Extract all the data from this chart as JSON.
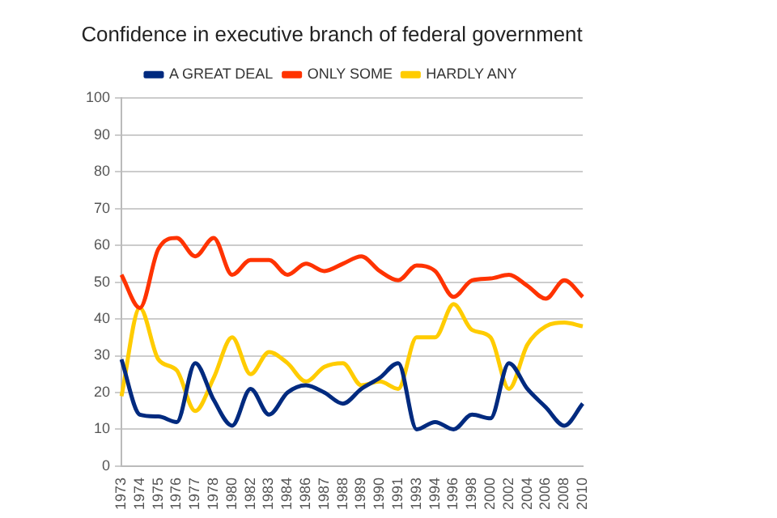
{
  "chart_data": {
    "type": "line",
    "title": "Confidence in executive branch of federal government",
    "categories": [
      "1973",
      "1974",
      "1975",
      "1976",
      "1977",
      "1978",
      "1980",
      "1982",
      "1983",
      "1984",
      "1986",
      "1987",
      "1988",
      "1989",
      "1990",
      "1991",
      "1993",
      "1994",
      "1996",
      "1998",
      "2000",
      "2002",
      "2004",
      "2006",
      "2008",
      "2010"
    ],
    "series": [
      {
        "name": "A GREAT DEAL",
        "color": "#002a7f",
        "values": [
          29,
          14,
          13.5,
          12,
          28,
          18,
          11,
          21,
          14,
          20,
          22,
          20,
          17,
          21,
          24,
          28,
          10,
          12,
          10,
          14,
          13,
          28,
          21,
          16,
          11,
          17
        ]
      },
      {
        "name": "ONLY SOME",
        "color": "#ff3300",
        "values": [
          52,
          43,
          59,
          62,
          57,
          62,
          52,
          56,
          56,
          52,
          55,
          53,
          55,
          57,
          53,
          50.5,
          54.5,
          53,
          46,
          50.5,
          51,
          52,
          49,
          45.5,
          50.5,
          46
        ]
      },
      {
        "name": "HARDLY ANY",
        "color": "#ffcc00",
        "values": [
          19,
          43,
          29,
          26,
          15,
          24,
          35,
          25,
          31,
          28,
          23,
          27,
          28,
          22,
          23,
          21,
          35,
          35,
          44,
          37,
          35,
          21,
          33,
          38,
          39,
          38
        ]
      }
    ],
    "ylim": [
      0,
      100
    ],
    "yticks": [
      0,
      10,
      20,
      30,
      40,
      50,
      60,
      70,
      80,
      90,
      100
    ],
    "grid": "y",
    "legend": "top",
    "marker": "none",
    "line_style": "solid"
  }
}
